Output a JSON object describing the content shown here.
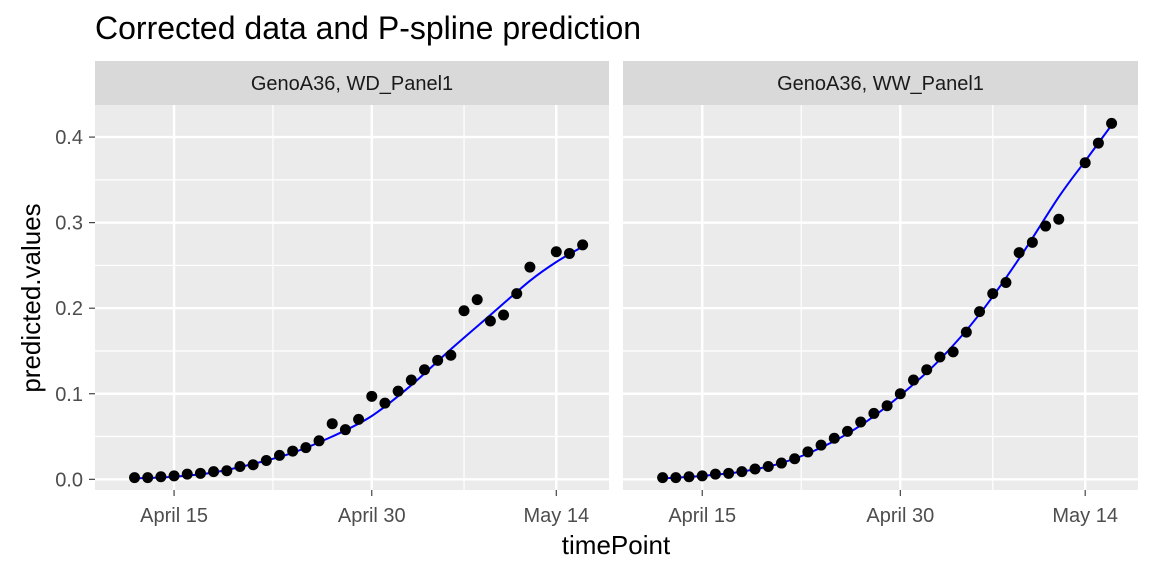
{
  "chart_data": {
    "type": "scatter",
    "title": "Corrected data and P-spline prediction",
    "xlabel": "timePoint",
    "ylabel": "predicted.values",
    "xlim": [
      "2018-04-09",
      "2018-05-18"
    ],
    "ylim": [
      -0.0125,
      0.4375
    ],
    "x_ticks": [
      {
        "date": "2018-04-15",
        "label": "April 15"
      },
      {
        "date": "2018-04-30",
        "label": "April 30"
      },
      {
        "date": "2018-05-14",
        "label": "May 14"
      }
    ],
    "y_ticks": [
      {
        "value": 0.0,
        "label": "0.0"
      },
      {
        "value": 0.1,
        "label": "0.1"
      },
      {
        "value": 0.2,
        "label": "0.2"
      },
      {
        "value": 0.3,
        "label": "0.3"
      },
      {
        "value": 0.4,
        "label": "0.4"
      }
    ],
    "grid": true,
    "point_color": "#000000",
    "line_color": "#0000ff",
    "panels": [
      {
        "strip": "GenoA36, WD_Panel1",
        "points": [
          {
            "x": "2018-04-12",
            "y": 0.002
          },
          {
            "x": "2018-04-13",
            "y": 0.002
          },
          {
            "x": "2018-04-14",
            "y": 0.003
          },
          {
            "x": "2018-04-15",
            "y": 0.004
          },
          {
            "x": "2018-04-16",
            "y": 0.006
          },
          {
            "x": "2018-04-17",
            "y": 0.007
          },
          {
            "x": "2018-04-18",
            "y": 0.009
          },
          {
            "x": "2018-04-19",
            "y": 0.01
          },
          {
            "x": "2018-04-20",
            "y": 0.015
          },
          {
            "x": "2018-04-21",
            "y": 0.017
          },
          {
            "x": "2018-04-22",
            "y": 0.022
          },
          {
            "x": "2018-04-23",
            "y": 0.028
          },
          {
            "x": "2018-04-24",
            "y": 0.033
          },
          {
            "x": "2018-04-25",
            "y": 0.037
          },
          {
            "x": "2018-04-26",
            "y": 0.045
          },
          {
            "x": "2018-04-27",
            "y": 0.065
          },
          {
            "x": "2018-04-28",
            "y": 0.058
          },
          {
            "x": "2018-04-29",
            "y": 0.07
          },
          {
            "x": "2018-04-30",
            "y": 0.097
          },
          {
            "x": "2018-05-01",
            "y": 0.089
          },
          {
            "x": "2018-05-02",
            "y": 0.103
          },
          {
            "x": "2018-05-03",
            "y": 0.116
          },
          {
            "x": "2018-05-04",
            "y": 0.128
          },
          {
            "x": "2018-05-05",
            "y": 0.139
          },
          {
            "x": "2018-05-06",
            "y": 0.145
          },
          {
            "x": "2018-05-07",
            "y": 0.197
          },
          {
            "x": "2018-05-08",
            "y": 0.21
          },
          {
            "x": "2018-05-09",
            "y": 0.185
          },
          {
            "x": "2018-05-10",
            "y": 0.192
          },
          {
            "x": "2018-05-11",
            "y": 0.217
          },
          {
            "x": "2018-05-12",
            "y": 0.248
          },
          {
            "x": "2018-05-14",
            "y": 0.266
          },
          {
            "x": "2018-05-15",
            "y": 0.264
          },
          {
            "x": "2018-05-16",
            "y": 0.274
          }
        ],
        "spline": [
          {
            "x": "2018-04-12",
            "y": 0.001
          },
          {
            "x": "2018-04-15",
            "y": 0.003
          },
          {
            "x": "2018-04-18",
            "y": 0.008
          },
          {
            "x": "2018-04-21",
            "y": 0.018
          },
          {
            "x": "2018-04-24",
            "y": 0.031
          },
          {
            "x": "2018-04-27",
            "y": 0.05
          },
          {
            "x": "2018-04-30",
            "y": 0.074
          },
          {
            "x": "2018-05-03",
            "y": 0.11
          },
          {
            "x": "2018-05-06",
            "y": 0.152
          },
          {
            "x": "2018-05-09",
            "y": 0.192
          },
          {
            "x": "2018-05-12",
            "y": 0.232
          },
          {
            "x": "2018-05-14",
            "y": 0.254
          },
          {
            "x": "2018-05-16",
            "y": 0.272
          }
        ]
      },
      {
        "strip": "GenoA36, WW_Panel1",
        "points": [
          {
            "x": "2018-04-12",
            "y": 0.002
          },
          {
            "x": "2018-04-13",
            "y": 0.002
          },
          {
            "x": "2018-04-14",
            "y": 0.003
          },
          {
            "x": "2018-04-15",
            "y": 0.004
          },
          {
            "x": "2018-04-16",
            "y": 0.006
          },
          {
            "x": "2018-04-17",
            "y": 0.007
          },
          {
            "x": "2018-04-18",
            "y": 0.009
          },
          {
            "x": "2018-04-19",
            "y": 0.012
          },
          {
            "x": "2018-04-20",
            "y": 0.015
          },
          {
            "x": "2018-04-21",
            "y": 0.019
          },
          {
            "x": "2018-04-22",
            "y": 0.024
          },
          {
            "x": "2018-04-23",
            "y": 0.032
          },
          {
            "x": "2018-04-24",
            "y": 0.04
          },
          {
            "x": "2018-04-25",
            "y": 0.048
          },
          {
            "x": "2018-04-26",
            "y": 0.056
          },
          {
            "x": "2018-04-27",
            "y": 0.067
          },
          {
            "x": "2018-04-28",
            "y": 0.077
          },
          {
            "x": "2018-04-29",
            "y": 0.086
          },
          {
            "x": "2018-04-30",
            "y": 0.1
          },
          {
            "x": "2018-05-01",
            "y": 0.116
          },
          {
            "x": "2018-05-02",
            "y": 0.128
          },
          {
            "x": "2018-05-03",
            "y": 0.143
          },
          {
            "x": "2018-05-04",
            "y": 0.149
          },
          {
            "x": "2018-05-05",
            "y": 0.172
          },
          {
            "x": "2018-05-06",
            "y": 0.196
          },
          {
            "x": "2018-05-07",
            "y": 0.217
          },
          {
            "x": "2018-05-08",
            "y": 0.23
          },
          {
            "x": "2018-05-09",
            "y": 0.265
          },
          {
            "x": "2018-05-10",
            "y": 0.277
          },
          {
            "x": "2018-05-11",
            "y": 0.296
          },
          {
            "x": "2018-05-12",
            "y": 0.304
          },
          {
            "x": "2018-05-14",
            "y": 0.37
          },
          {
            "x": "2018-05-15",
            "y": 0.393
          },
          {
            "x": "2018-05-16",
            "y": 0.416
          }
        ],
        "spline": [
          {
            "x": "2018-04-12",
            "y": 0.001
          },
          {
            "x": "2018-04-15",
            "y": 0.004
          },
          {
            "x": "2018-04-18",
            "y": 0.009
          },
          {
            "x": "2018-04-21",
            "y": 0.019
          },
          {
            "x": "2018-04-24",
            "y": 0.037
          },
          {
            "x": "2018-04-27",
            "y": 0.063
          },
          {
            "x": "2018-04-30",
            "y": 0.098
          },
          {
            "x": "2018-05-03",
            "y": 0.14
          },
          {
            "x": "2018-05-06",
            "y": 0.193
          },
          {
            "x": "2018-05-09",
            "y": 0.258
          },
          {
            "x": "2018-05-12",
            "y": 0.33
          },
          {
            "x": "2018-05-14",
            "y": 0.372
          },
          {
            "x": "2018-05-16",
            "y": 0.414
          }
        ]
      }
    ]
  }
}
